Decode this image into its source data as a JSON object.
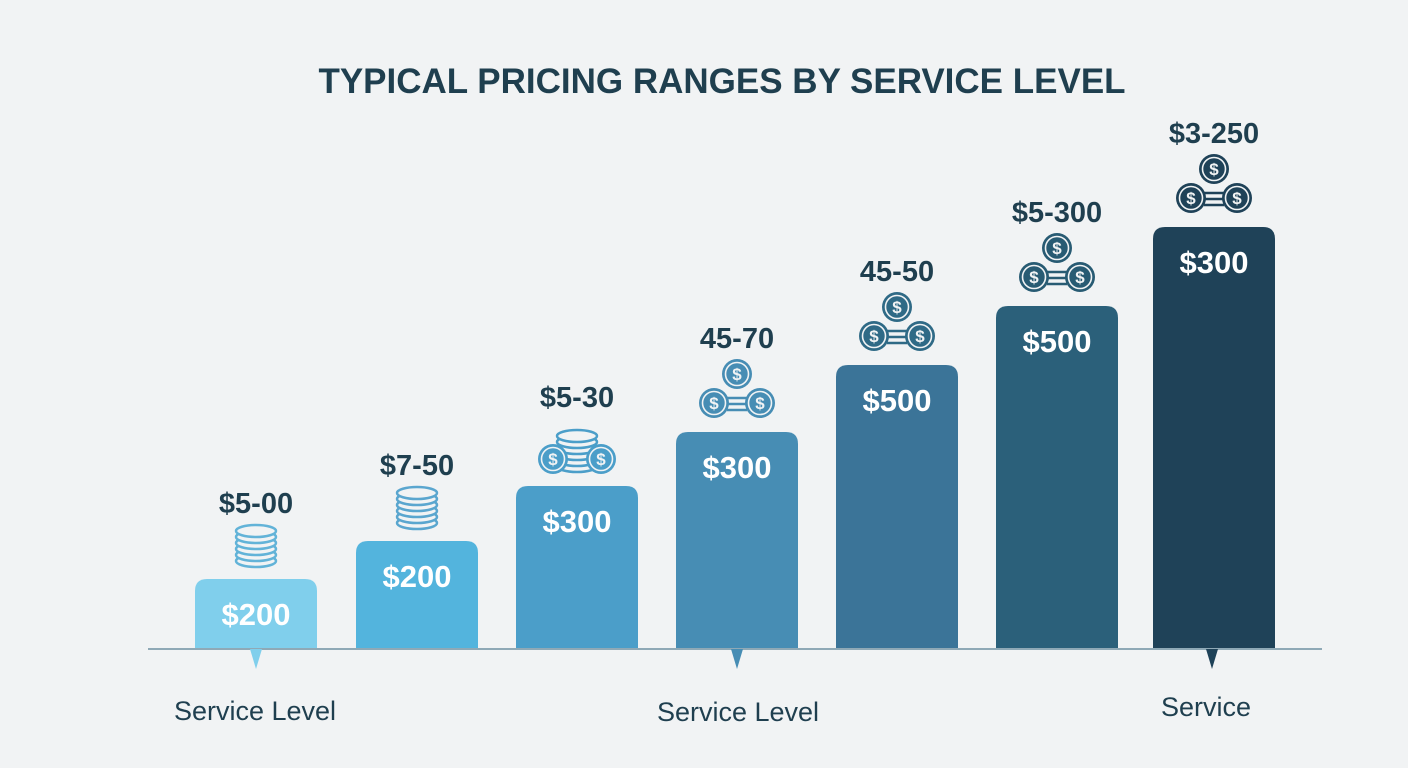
{
  "chart_data": {
    "type": "bar",
    "title": "TYPICAL PRICING RANGES BY SERVICE LEVEL",
    "bars": [
      {
        "label": "$200",
        "range": "$5-00",
        "color": "#80cfec",
        "icon": "coin-stack-icon"
      },
      {
        "label": "$200",
        "range": "$7-50",
        "color": "#53b4dd",
        "icon": "coin-stack-icon"
      },
      {
        "label": "$300",
        "range": "$5-30",
        "color": "#4b9ec9",
        "icon": "coin-stack-with-coins-icon"
      },
      {
        "label": "$300",
        "range": "45-70",
        "color": "#478db4",
        "icon": "three-coins-icon"
      },
      {
        "label": "$500",
        "range": "45-50",
        "color": "#3b7498",
        "icon": "three-coins-icon"
      },
      {
        "label": "$500",
        "range": "$5-300",
        "color": "#2b607a",
        "icon": "three-coins-icon"
      },
      {
        "label": "$300",
        "range": "$3-250",
        "color": "#1f4258",
        "icon": "three-coins-icon"
      }
    ],
    "x_labels": [
      "Service Level",
      "Service Level",
      "Service"
    ],
    "grid": false,
    "legend": "none"
  }
}
